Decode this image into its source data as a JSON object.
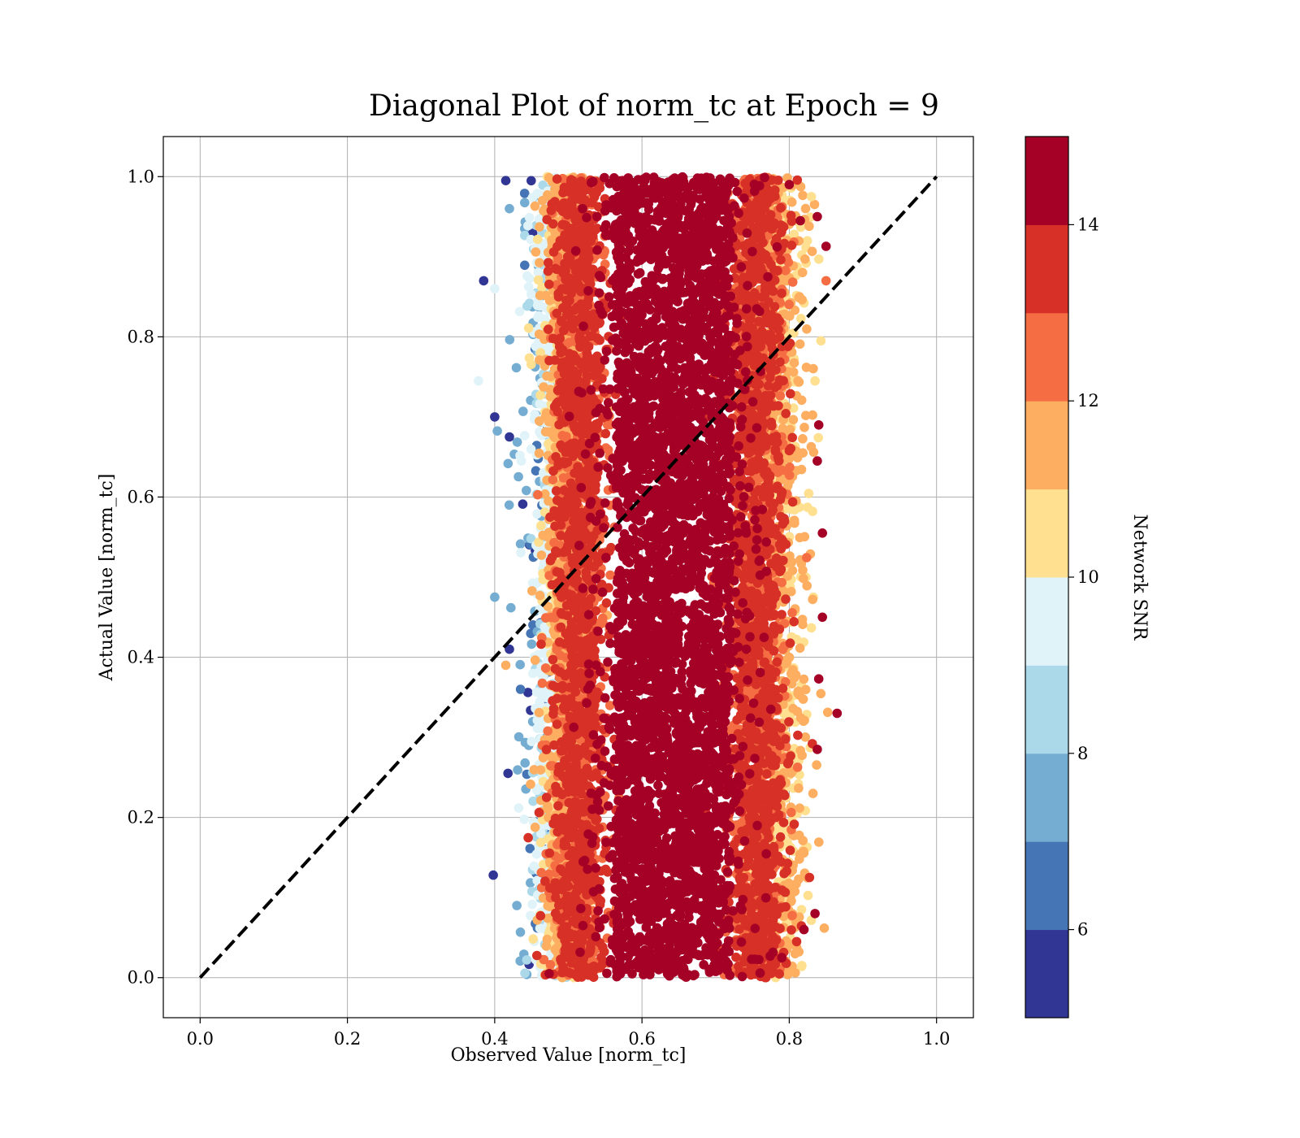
{
  "chart_data": {
    "type": "scatter",
    "title": "Diagonal Plot of norm_tc at Epoch = 9",
    "xlabel": "Observed Value [norm_tc]",
    "ylabel": "Actual Value [norm_tc]",
    "xlim": [
      -0.05,
      1.05
    ],
    "ylim": [
      -0.05,
      1.05
    ],
    "xticks": [
      "0.0",
      "0.2",
      "0.4",
      "0.6",
      "0.8",
      "1.0"
    ],
    "yticks": [
      "0.0",
      "0.2",
      "0.4",
      "0.6",
      "0.8",
      "1.0"
    ],
    "grid": true,
    "reference_line": {
      "style": "dashed",
      "color": "#000000",
      "from": [
        0.0,
        0.0
      ],
      "to": [
        1.0,
        1.0
      ]
    },
    "colorbar": {
      "label": "Network SNR",
      "range": [
        5,
        15
      ],
      "ticks": [
        "6",
        "8",
        "10",
        "12",
        "14"
      ],
      "levels": [
        5,
        6,
        7,
        8,
        9,
        10,
        11,
        12,
        13,
        14,
        15
      ],
      "colors": [
        "#313695",
        "#4575b4",
        "#74add1",
        "#abd9e9",
        "#e0f3f8",
        "#fee090",
        "#fdae61",
        "#f46d43",
        "#d73027",
        "#a50026"
      ]
    },
    "points_summary": {
      "x_range": [
        0.38,
        0.87
      ],
      "y_range": [
        0.0,
        1.0
      ],
      "dense_core_x": [
        0.55,
        0.73
      ],
      "note_color": "high SNR points concentrated at x 0.55–0.75; low SNR points at x 0.40–0.52"
    },
    "sample_points": [
      {
        "x": 0.385,
        "y": 0.87,
        "snr": 5.2
      },
      {
        "x": 0.4,
        "y": 0.86,
        "snr": 9.0
      },
      {
        "x": 0.378,
        "y": 0.745,
        "snr": 9.5
      },
      {
        "x": 0.4,
        "y": 0.7,
        "snr": 5.5
      },
      {
        "x": 0.4,
        "y": 0.475,
        "snr": 7.5
      },
      {
        "x": 0.398,
        "y": 0.128,
        "snr": 5.6
      },
      {
        "x": 0.415,
        "y": 0.995,
        "snr": 5.3
      },
      {
        "x": 0.42,
        "y": 0.96,
        "snr": 7.5
      },
      {
        "x": 0.42,
        "y": 0.675,
        "snr": 5.6
      },
      {
        "x": 0.42,
        "y": 0.41,
        "snr": 5.4
      },
      {
        "x": 0.418,
        "y": 0.255,
        "snr": 5.5
      },
      {
        "x": 0.415,
        "y": 0.39,
        "snr": 11.5
      },
      {
        "x": 0.435,
        "y": 0.36,
        "snr": 6.0
      },
      {
        "x": 0.43,
        "y": 0.09,
        "snr": 7.0
      },
      {
        "x": 0.474,
        "y": 0.005,
        "snr": 14.8
      },
      {
        "x": 0.8,
        "y": 0.99,
        "snr": 14.8
      },
      {
        "x": 0.815,
        "y": 0.945,
        "snr": 14.6
      },
      {
        "x": 0.83,
        "y": 0.975,
        "snr": 10.5
      },
      {
        "x": 0.838,
        "y": 0.95,
        "snr": 14.7
      },
      {
        "x": 0.85,
        "y": 0.913,
        "snr": 14.8
      },
      {
        "x": 0.85,
        "y": 0.87,
        "snr": 12.5
      },
      {
        "x": 0.843,
        "y": 0.795,
        "snr": 10.5
      },
      {
        "x": 0.835,
        "y": 0.745,
        "snr": 10.5
      },
      {
        "x": 0.84,
        "y": 0.69,
        "snr": 14.8
      },
      {
        "x": 0.838,
        "y": 0.645,
        "snr": 14.8
      },
      {
        "x": 0.845,
        "y": 0.555,
        "snr": 14.8
      },
      {
        "x": 0.845,
        "y": 0.45,
        "snr": 14.8
      },
      {
        "x": 0.84,
        "y": 0.373,
        "snr": 14.8
      },
      {
        "x": 0.865,
        "y": 0.33,
        "snr": 14.8
      },
      {
        "x": 0.838,
        "y": 0.285,
        "snr": 14.8
      },
      {
        "x": 0.835,
        "y": 0.08,
        "snr": 14.8
      },
      {
        "x": 0.82,
        "y": 0.06,
        "snr": 14.8
      },
      {
        "x": 0.81,
        "y": 0.045,
        "snr": 13.5
      },
      {
        "x": 0.79,
        "y": 0.025,
        "snr": 14.8
      }
    ]
  }
}
